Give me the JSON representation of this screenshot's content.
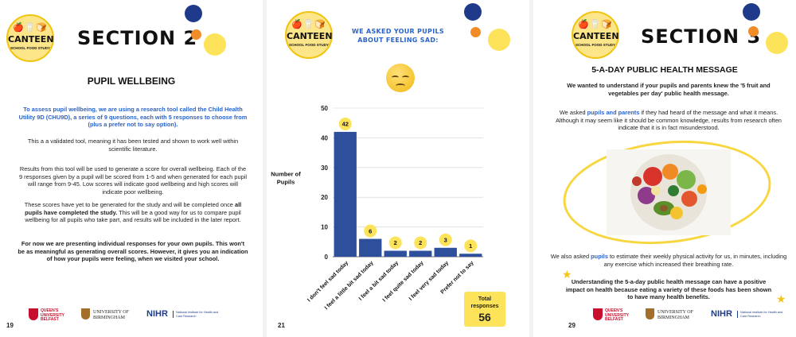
{
  "logo": {
    "title": "CANTEEN",
    "subtitle": "SCHOOL FOOD STUDY"
  },
  "page1": {
    "section": "SECTION 2",
    "heading": "PUPIL WELLBEING",
    "intro": "To assess pupil wellbeing, we are using a research tool called the Child Health Utility 9D (CHU9D), a series of 9 questions, each with 5 responses to choose from (plus a prefer not to say option).",
    "p2": "This a a validated tool, meaning it has been tested and shown to work well within scientific literature.",
    "p3": "Results from this tool will be used to generate a score for overall wellbeing. Each of the 9 responses given by a pupil will be scored from 1-5 and when generated for each pupil will range from 9-45.  Low scores will indicate good wellbeing and high scores will indicate poor wellbeing.",
    "p4a": "These scores have yet to be generated for the study and will be completed once ",
    "p4b": "all pupils have completed the study.",
    "p4c": "  This will be a good way for us to compare pupil wellbeing for all pupils who take part, and results will be included in the later report.",
    "p5": "For now we are presenting individual responses for your own pupils.  This won't be as meaningful as generating overall scores.  However, it gives you an indication of how your pupils were feeling, when we visited your school.",
    "page_number": "19"
  },
  "page2": {
    "heading": "WE ASKED YOUR PUPILS ABOUT FEELING SAD:",
    "total_label": "Total responses",
    "total_value": "56",
    "page_number": "21"
  },
  "page3": {
    "section": "SECTION 3",
    "heading": "5-A-DAY PUBLIC HEALTH MESSAGE",
    "intro": "We wanted to understand if your pupils and parents knew the '5 fruit and vegetables per day' public health message.",
    "p2a": "We asked ",
    "p2b": "pupils and parents",
    "p2c": " if they had heard of the message and what it means.  Although it may seem like it should be common knowledge, results from research often indicate that it is in fact misunderstood.",
    "p3a": "We also asked ",
    "p3b": "pupils",
    "p3c": " to estimate their weekly physical activity for us, in minutes, including any exercise which increased their breathing rate.",
    "p4": "Understanding the 5-a-day public health message can have a positive impact on health because eating a variety of these foods has  been shown to have many health benefits.",
    "page_number": "29"
  },
  "footer": {
    "qub": "QUEEN'S UNIVERSITY BELFAST",
    "bham": "UNIVERSITY OF BIRMINGHAM",
    "nihr": "NIHR",
    "nihr_sub": "National Institute for Health and Care Research"
  },
  "colors": {
    "bar": "#2e4f9b",
    "label_bubble": "#fde35a",
    "accent_blue": "#2b63c9"
  },
  "chart_data": {
    "type": "bar",
    "categories": [
      "I don't feel sad today",
      "I feel a little bit sad today",
      "I feel a bit sad today",
      "I feel quite sad today",
      "I feel very sad today",
      "Prefer not to say"
    ],
    "values": [
      42,
      6,
      2,
      2,
      3,
      1
    ],
    "ylabel": "Number of Pupils",
    "ylim": [
      0,
      50
    ],
    "yticks": [
      0,
      10,
      20,
      30,
      40,
      50
    ],
    "grid": true
  }
}
